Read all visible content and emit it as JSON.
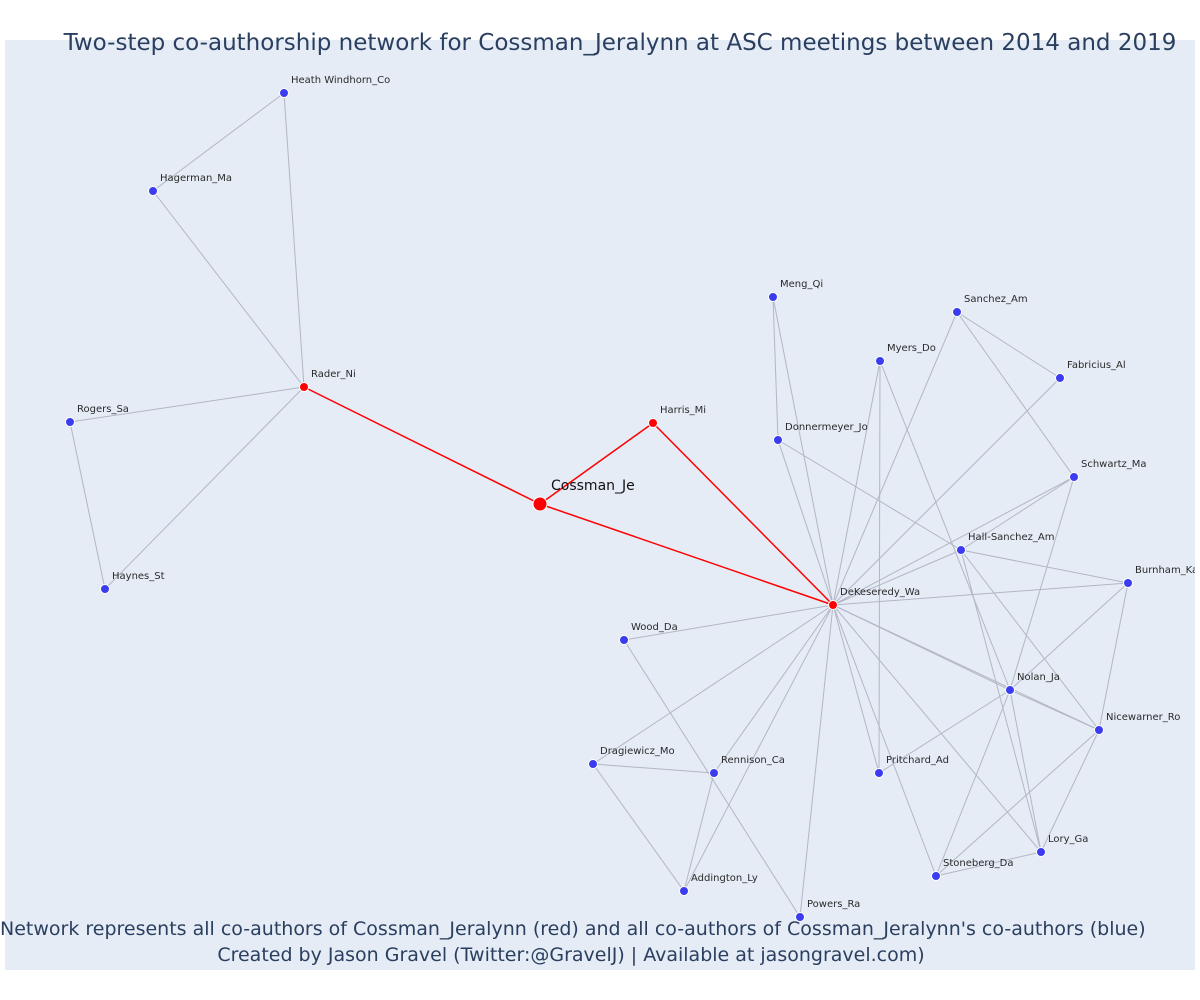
{
  "title": "Two-step co-authorship network for Cossman_Jeralynn at ASC meetings between 2014 and 2019",
  "caption": {
    "line1": "Network represents all co-authors of Cossman_Jeralynn (red) and all co-authors of Cossman_Jeralynn's co-authors (blue)",
    "line2": "Created by Jason Gravel (Twitter:@GravelJ) | Available at jasongravel.com)"
  },
  "colors": {
    "background": "#e5ecf6",
    "first_degree": "#ff0000",
    "second_degree": "#3b3bf0",
    "edge_red": "#ff0000",
    "edge_gray": "#b3b6c4",
    "text": "#2a3f5f"
  },
  "nodes": [
    {
      "id": "Cossman_Je",
      "label": "Cossman_Je",
      "group": "focal"
    },
    {
      "id": "Rader_Ni",
      "label": "Rader_Ni",
      "group": "first"
    },
    {
      "id": "Harris_Mi",
      "label": "Harris_Mi",
      "group": "first"
    },
    {
      "id": "DeKeseredy_Wa",
      "label": "DeKeseredy_Wa",
      "group": "first"
    },
    {
      "id": "Heath Windhorn_Co",
      "label": "Heath Windhorn_Co",
      "group": "second"
    },
    {
      "id": "Hagerman_Ma",
      "label": "Hagerman_Ma",
      "group": "second"
    },
    {
      "id": "Rogers_Sa",
      "label": "Rogers_Sa",
      "group": "second"
    },
    {
      "id": "Haynes_St",
      "label": "Haynes_St",
      "group": "second"
    },
    {
      "id": "Meng_Qi",
      "label": "Meng_Qi",
      "group": "second"
    },
    {
      "id": "Sanchez_Am",
      "label": "Sanchez_Am",
      "group": "second"
    },
    {
      "id": "Myers_Do",
      "label": "Myers_Do",
      "group": "second"
    },
    {
      "id": "Fabricius_Al",
      "label": "Fabricius_Al",
      "group": "second"
    },
    {
      "id": "Donnermeyer_Jo",
      "label": "Donnermeyer_Jo",
      "group": "second"
    },
    {
      "id": "Schwartz_Ma",
      "label": "Schwartz_Ma",
      "group": "second"
    },
    {
      "id": "Hall-Sanchez_Am",
      "label": "Hall-Sanchez_Am",
      "group": "second"
    },
    {
      "id": "Burnham_Ka",
      "label": "Burnham_Ka",
      "group": "second"
    },
    {
      "id": "Wood_Da",
      "label": "Wood_Da",
      "group": "second"
    },
    {
      "id": "Nolan_Ja",
      "label": "Nolan_Ja",
      "group": "second"
    },
    {
      "id": "Nicewarner_Ro",
      "label": "Nicewarner_Ro",
      "group": "second"
    },
    {
      "id": "Dragiewicz_Mo",
      "label": "Dragiewicz_Mo",
      "group": "second"
    },
    {
      "id": "Rennison_Ca",
      "label": "Rennison_Ca",
      "group": "second"
    },
    {
      "id": "Pritchard_Ad",
      "label": "Pritchard_Ad",
      "group": "second"
    },
    {
      "id": "Lory_Ga",
      "label": "Lory_Ga",
      "group": "second"
    },
    {
      "id": "Stoneberg_Da",
      "label": "Stoneberg_Da",
      "group": "second"
    },
    {
      "id": "Addington_Ly",
      "label": "Addington_Ly",
      "group": "second"
    },
    {
      "id": "Powers_Ra",
      "label": "Powers_Ra",
      "group": "second"
    }
  ],
  "edges": [
    [
      "Cossman_Je",
      "Rader_Ni"
    ],
    [
      "Cossman_Je",
      "Harris_Mi"
    ],
    [
      "Cossman_Je",
      "DeKeseredy_Wa"
    ],
    [
      "Harris_Mi",
      "DeKeseredy_Wa"
    ],
    [
      "Rader_Ni",
      "Heath Windhorn_Co"
    ],
    [
      "Rader_Ni",
      "Hagerman_Ma"
    ],
    [
      "Rader_Ni",
      "Rogers_Sa"
    ],
    [
      "Rader_Ni",
      "Haynes_St"
    ],
    [
      "Heath Windhorn_Co",
      "Hagerman_Ma"
    ],
    [
      "Rogers_Sa",
      "Haynes_St"
    ],
    [
      "DeKeseredy_Wa",
      "Meng_Qi"
    ],
    [
      "DeKeseredy_Wa",
      "Sanchez_Am"
    ],
    [
      "DeKeseredy_Wa",
      "Myers_Do"
    ],
    [
      "DeKeseredy_Wa",
      "Fabricius_Al"
    ],
    [
      "DeKeseredy_Wa",
      "Donnermeyer_Jo"
    ],
    [
      "DeKeseredy_Wa",
      "Schwartz_Ma"
    ],
    [
      "DeKeseredy_Wa",
      "Hall-Sanchez_Am"
    ],
    [
      "DeKeseredy_Wa",
      "Burnham_Ka"
    ],
    [
      "DeKeseredy_Wa",
      "Wood_Da"
    ],
    [
      "DeKeseredy_Wa",
      "Nolan_Ja"
    ],
    [
      "DeKeseredy_Wa",
      "Nicewarner_Ro"
    ],
    [
      "DeKeseredy_Wa",
      "Dragiewicz_Mo"
    ],
    [
      "DeKeseredy_Wa",
      "Rennison_Ca"
    ],
    [
      "DeKeseredy_Wa",
      "Pritchard_Ad"
    ],
    [
      "DeKeseredy_Wa",
      "Lory_Ga"
    ],
    [
      "DeKeseredy_Wa",
      "Stoneberg_Da"
    ],
    [
      "DeKeseredy_Wa",
      "Addington_Ly"
    ],
    [
      "DeKeseredy_Wa",
      "Powers_Ra"
    ],
    [
      "Meng_Qi",
      "Donnermeyer_Jo"
    ],
    [
      "Donnermeyer_Jo",
      "Hall-Sanchez_Am"
    ],
    [
      "Sanchez_Am",
      "Fabricius_Al"
    ],
    [
      "Sanchez_Am",
      "Schwartz_Ma"
    ],
    [
      "Myers_Do",
      "Pritchard_Ad"
    ],
    [
      "Myers_Do",
      "Nolan_Ja"
    ],
    [
      "Schwartz_Ma",
      "Hall-Sanchez_Am"
    ],
    [
      "Schwartz_Ma",
      "Nolan_Ja"
    ],
    [
      "Hall-Sanchez_Am",
      "Burnham_Ka"
    ],
    [
      "Hall-Sanchez_Am",
      "Lory_Ga"
    ],
    [
      "Hall-Sanchez_Am",
      "Nicewarner_Ro"
    ],
    [
      "Burnham_Ka",
      "Nolan_Ja"
    ],
    [
      "Burnham_Ka",
      "Nicewarner_Ro"
    ],
    [
      "Nolan_Ja",
      "Nicewarner_Ro"
    ],
    [
      "Nolan_Ja",
      "Pritchard_Ad"
    ],
    [
      "Nolan_Ja",
      "Stoneberg_Da"
    ],
    [
      "Nolan_Ja",
      "Lory_Ga"
    ],
    [
      "Nicewarner_Ro",
      "Stoneberg_Da"
    ],
    [
      "Nicewarner_Ro",
      "Lory_Ga"
    ],
    [
      "Stoneberg_Da",
      "Lory_Ga"
    ],
    [
      "Wood_Da",
      "Powers_Ra"
    ],
    [
      "Dragiewicz_Mo",
      "Rennison_Ca"
    ],
    [
      "Dragiewicz_Mo",
      "Addington_Ly"
    ],
    [
      "Rennison_Ca",
      "Addington_Ly"
    ]
  ]
}
